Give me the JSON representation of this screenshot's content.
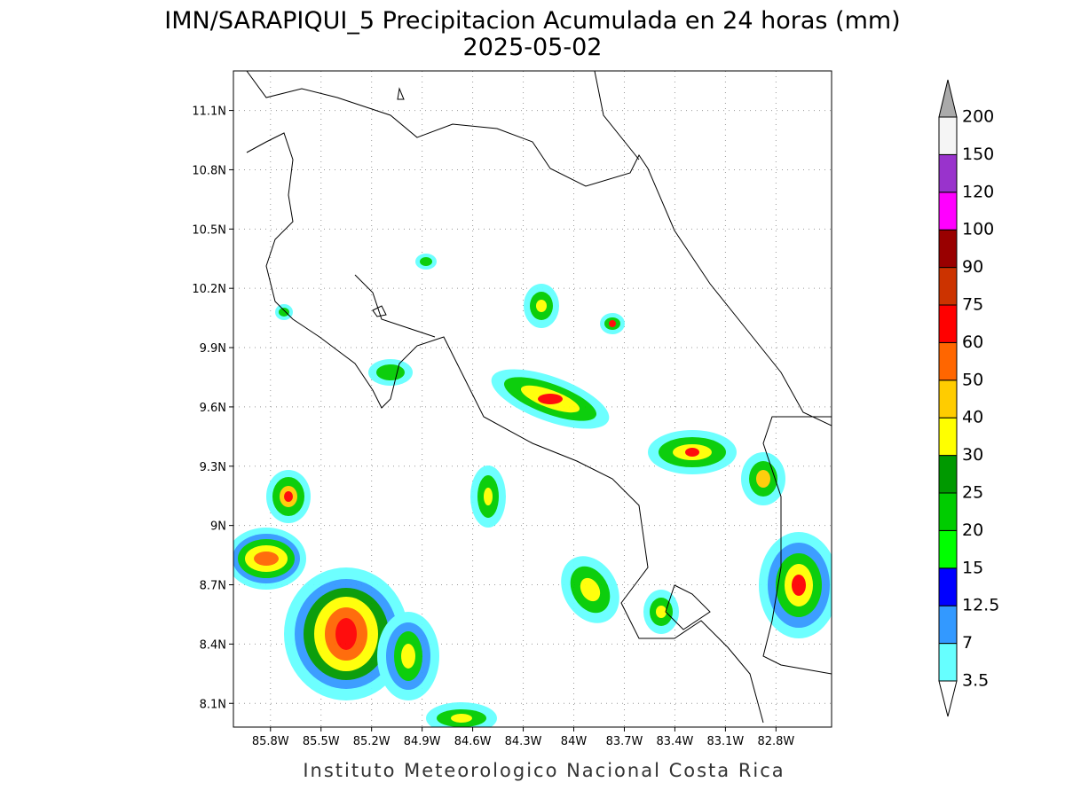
{
  "map": {
    "title": "IMN/SARAPIQUI_5 Precipitacion Acumulada en 24 horas (mm)",
    "subtitle": "2025-05-02",
    "footer": "Instituto Meteorologico Nacional Costa Rica",
    "xlim": [
      -86.02,
      -82.47
    ],
    "ylim": [
      7.98,
      11.3
    ],
    "xticks": [
      {
        "value": -85.8,
        "label": "85.8W"
      },
      {
        "value": -85.5,
        "label": "85.5W"
      },
      {
        "value": -85.2,
        "label": "85.2W"
      },
      {
        "value": -84.9,
        "label": "84.9W"
      },
      {
        "value": -84.6,
        "label": "84.6W"
      },
      {
        "value": -84.3,
        "label": "84.3W"
      },
      {
        "value": -84,
        "label": "84W"
      },
      {
        "value": -83.7,
        "label": "83.7W"
      },
      {
        "value": -83.4,
        "label": "83.4W"
      },
      {
        "value": -83.1,
        "label": "83.1W"
      },
      {
        "value": -82.8,
        "label": "82.8W"
      }
    ],
    "yticks": [
      {
        "value": 8.1,
        "label": "8.1N"
      },
      {
        "value": 8.4,
        "label": "8.4N"
      },
      {
        "value": 8.7,
        "label": "8.7N"
      },
      {
        "value": 9,
        "label": "9N"
      },
      {
        "value": 9.3,
        "label": "9.3N"
      },
      {
        "value": 9.6,
        "label": "9.6N"
      },
      {
        "value": 9.9,
        "label": "9.9N"
      },
      {
        "value": 10.2,
        "label": "10.2N"
      },
      {
        "value": 10.5,
        "label": "10.5N"
      },
      {
        "value": 10.8,
        "label": "10.8N"
      },
      {
        "value": 11.1,
        "label": "11.1N"
      }
    ],
    "grid": true,
    "colorbar": {
      "levels": [
        3.5,
        7,
        12.5,
        15,
        20,
        25,
        30,
        40,
        50,
        60,
        75,
        90,
        100,
        120,
        150,
        200
      ],
      "colors": [
        "#66ffff",
        "#3399ff",
        "#0000ff",
        "#00ff00",
        "#00cc00",
        "#009900",
        "#ffff00",
        "#ffcc00",
        "#ff6600",
        "#ff0000",
        "#cc3300",
        "#990000",
        "#ff00ff",
        "#9933cc",
        "#f5f5f5"
      ],
      "under_color": "#ffffff",
      "over_color": "#aaaaaa"
    }
  }
}
